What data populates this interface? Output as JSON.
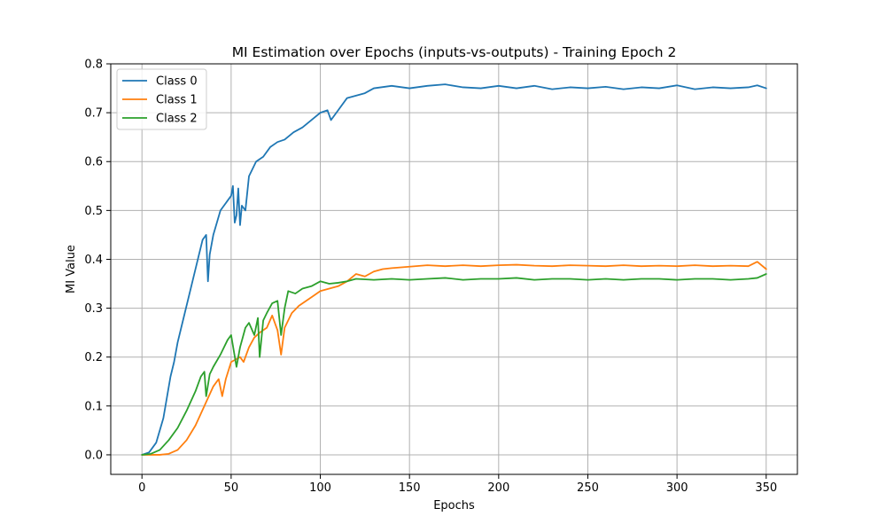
{
  "chart_data": {
    "type": "line",
    "title": "MI Estimation over Epochs (inputs-vs-outputs) - Training Epoch 2",
    "xlabel": "Epochs",
    "ylabel": "MI Value",
    "xlim": [
      -17.5,
      367.5
    ],
    "ylim": [
      -0.04,
      0.8
    ],
    "xticks": [
      0,
      50,
      100,
      150,
      200,
      250,
      300,
      350
    ],
    "yticks": [
      0.0,
      0.1,
      0.2,
      0.3,
      0.4,
      0.5,
      0.6,
      0.7,
      0.8
    ],
    "ytick_labels": [
      "0.0",
      "0.1",
      "0.2",
      "0.3",
      "0.4",
      "0.5",
      "0.6",
      "0.7",
      "0.8"
    ],
    "grid": true,
    "legend_position": "upper-left",
    "series": [
      {
        "name": "Class 0",
        "color": "#1f77b4",
        "points": [
          [
            0,
            0
          ],
          [
            4,
            0.005
          ],
          [
            8,
            0.025
          ],
          [
            12,
            0.075
          ],
          [
            16,
            0.16
          ],
          [
            18,
            0.19
          ],
          [
            20,
            0.23
          ],
          [
            24,
            0.29
          ],
          [
            28,
            0.35
          ],
          [
            32,
            0.41
          ],
          [
            34,
            0.44
          ],
          [
            36,
            0.45
          ],
          [
            37,
            0.355
          ],
          [
            38,
            0.41
          ],
          [
            40,
            0.45
          ],
          [
            44,
            0.5
          ],
          [
            48,
            0.52
          ],
          [
            50,
            0.53
          ],
          [
            51,
            0.55
          ],
          [
            52,
            0.475
          ],
          [
            53,
            0.49
          ],
          [
            54,
            0.545
          ],
          [
            55,
            0.47
          ],
          [
            56,
            0.51
          ],
          [
            58,
            0.5
          ],
          [
            60,
            0.57
          ],
          [
            64,
            0.6
          ],
          [
            68,
            0.61
          ],
          [
            72,
            0.63
          ],
          [
            76,
            0.64
          ],
          [
            80,
            0.645
          ],
          [
            85,
            0.66
          ],
          [
            90,
            0.67
          ],
          [
            95,
            0.685
          ],
          [
            100,
            0.7
          ],
          [
            104,
            0.705
          ],
          [
            106,
            0.685
          ],
          [
            110,
            0.705
          ],
          [
            115,
            0.73
          ],
          [
            120,
            0.735
          ],
          [
            125,
            0.74
          ],
          [
            130,
            0.75
          ],
          [
            140,
            0.755
          ],
          [
            150,
            0.75
          ],
          [
            160,
            0.755
          ],
          [
            170,
            0.758
          ],
          [
            180,
            0.752
          ],
          [
            190,
            0.75
          ],
          [
            200,
            0.755
          ],
          [
            210,
            0.75
          ],
          [
            220,
            0.755
          ],
          [
            230,
            0.748
          ],
          [
            240,
            0.752
          ],
          [
            250,
            0.75
          ],
          [
            260,
            0.753
          ],
          [
            270,
            0.748
          ],
          [
            280,
            0.752
          ],
          [
            290,
            0.75
          ],
          [
            300,
            0.756
          ],
          [
            310,
            0.748
          ],
          [
            320,
            0.752
          ],
          [
            330,
            0.75
          ],
          [
            340,
            0.752
          ],
          [
            345,
            0.756
          ],
          [
            350,
            0.75
          ]
        ]
      },
      {
        "name": "Class 1",
        "color": "#ff7f0e",
        "points": [
          [
            0,
            0
          ],
          [
            10,
            0
          ],
          [
            15,
            0.002
          ],
          [
            20,
            0.01
          ],
          [
            25,
            0.03
          ],
          [
            30,
            0.06
          ],
          [
            35,
            0.1
          ],
          [
            40,
            0.14
          ],
          [
            43,
            0.155
          ],
          [
            45,
            0.12
          ],
          [
            47,
            0.155
          ],
          [
            50,
            0.19
          ],
          [
            55,
            0.2
          ],
          [
            57,
            0.19
          ],
          [
            60,
            0.22
          ],
          [
            63,
            0.24
          ],
          [
            66,
            0.25
          ],
          [
            70,
            0.26
          ],
          [
            73,
            0.285
          ],
          [
            76,
            0.255
          ],
          [
            78,
            0.205
          ],
          [
            80,
            0.26
          ],
          [
            84,
            0.29
          ],
          [
            88,
            0.305
          ],
          [
            92,
            0.315
          ],
          [
            96,
            0.325
          ],
          [
            100,
            0.335
          ],
          [
            105,
            0.34
          ],
          [
            110,
            0.345
          ],
          [
            115,
            0.355
          ],
          [
            120,
            0.37
          ],
          [
            125,
            0.365
          ],
          [
            130,
            0.375
          ],
          [
            135,
            0.38
          ],
          [
            140,
            0.382
          ],
          [
            150,
            0.385
          ],
          [
            160,
            0.388
          ],
          [
            170,
            0.386
          ],
          [
            180,
            0.388
          ],
          [
            190,
            0.386
          ],
          [
            200,
            0.388
          ],
          [
            210,
            0.389
          ],
          [
            220,
            0.387
          ],
          [
            230,
            0.386
          ],
          [
            240,
            0.388
          ],
          [
            250,
            0.387
          ],
          [
            260,
            0.386
          ],
          [
            270,
            0.388
          ],
          [
            280,
            0.386
          ],
          [
            290,
            0.387
          ],
          [
            300,
            0.386
          ],
          [
            310,
            0.388
          ],
          [
            320,
            0.386
          ],
          [
            330,
            0.387
          ],
          [
            340,
            0.386
          ],
          [
            345,
            0.395
          ],
          [
            350,
            0.38
          ]
        ]
      },
      {
        "name": "Class 2",
        "color": "#2ca02c",
        "points": [
          [
            0,
            0
          ],
          [
            5,
            0.002
          ],
          [
            10,
            0.01
          ],
          [
            15,
            0.03
          ],
          [
            20,
            0.055
          ],
          [
            25,
            0.09
          ],
          [
            30,
            0.13
          ],
          [
            33,
            0.16
          ],
          [
            35,
            0.17
          ],
          [
            36,
            0.12
          ],
          [
            38,
            0.165
          ],
          [
            40,
            0.18
          ],
          [
            44,
            0.205
          ],
          [
            48,
            0.235
          ],
          [
            50,
            0.245
          ],
          [
            53,
            0.18
          ],
          [
            55,
            0.22
          ],
          [
            58,
            0.26
          ],
          [
            60,
            0.27
          ],
          [
            63,
            0.245
          ],
          [
            65,
            0.28
          ],
          [
            66,
            0.2
          ],
          [
            68,
            0.275
          ],
          [
            70,
            0.29
          ],
          [
            73,
            0.31
          ],
          [
            76,
            0.315
          ],
          [
            78,
            0.245
          ],
          [
            80,
            0.3
          ],
          [
            82,
            0.335
          ],
          [
            86,
            0.33
          ],
          [
            90,
            0.34
          ],
          [
            95,
            0.345
          ],
          [
            100,
            0.355
          ],
          [
            105,
            0.35
          ],
          [
            110,
            0.352
          ],
          [
            115,
            0.355
          ],
          [
            120,
            0.36
          ],
          [
            130,
            0.358
          ],
          [
            140,
            0.36
          ],
          [
            150,
            0.358
          ],
          [
            160,
            0.36
          ],
          [
            170,
            0.362
          ],
          [
            180,
            0.358
          ],
          [
            190,
            0.36
          ],
          [
            200,
            0.36
          ],
          [
            210,
            0.362
          ],
          [
            220,
            0.358
          ],
          [
            230,
            0.36
          ],
          [
            240,
            0.36
          ],
          [
            250,
            0.358
          ],
          [
            260,
            0.36
          ],
          [
            270,
            0.358
          ],
          [
            280,
            0.36
          ],
          [
            290,
            0.36
          ],
          [
            300,
            0.358
          ],
          [
            310,
            0.36
          ],
          [
            320,
            0.36
          ],
          [
            330,
            0.358
          ],
          [
            340,
            0.36
          ],
          [
            345,
            0.362
          ],
          [
            350,
            0.37
          ]
        ]
      }
    ]
  }
}
